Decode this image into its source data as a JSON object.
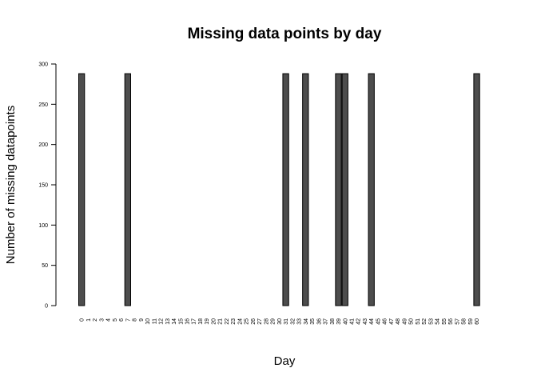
{
  "chart_data": {
    "type": "bar",
    "title": "Missing data points by day",
    "xlabel": "Day",
    "ylabel": "Number of missing datapoints",
    "ylim": [
      0,
      300
    ],
    "yticks": [
      0,
      50,
      100,
      150,
      200,
      250,
      300
    ],
    "categories": [
      "0",
      "1",
      "2",
      "3",
      "4",
      "5",
      "6",
      "7",
      "8",
      "9",
      "10",
      "11",
      "12",
      "13",
      "14",
      "15",
      "16",
      "17",
      "18",
      "19",
      "20",
      "21",
      "22",
      "23",
      "24",
      "25",
      "26",
      "27",
      "28",
      "29",
      "30",
      "31",
      "32",
      "33",
      "34",
      "35",
      "36",
      "37",
      "38",
      "39",
      "40",
      "41",
      "42",
      "43",
      "44",
      "45",
      "46",
      "47",
      "48",
      "49",
      "50",
      "51",
      "52",
      "53",
      "54",
      "55",
      "56",
      "57",
      "58",
      "59",
      "60"
    ],
    "values": [
      288,
      0,
      0,
      0,
      0,
      0,
      0,
      288,
      0,
      0,
      0,
      0,
      0,
      0,
      0,
      0,
      0,
      0,
      0,
      0,
      0,
      0,
      0,
      0,
      0,
      0,
      0,
      0,
      0,
      0,
      0,
      288,
      0,
      0,
      288,
      0,
      0,
      0,
      0,
      288,
      288,
      0,
      0,
      0,
      288,
      0,
      0,
      0,
      0,
      0,
      0,
      0,
      0,
      0,
      0,
      0,
      0,
      0,
      0,
      0,
      288
    ],
    "bar_color": "#4d4d4d",
    "border_color": "#000000",
    "grid": false,
    "legend": "none"
  }
}
